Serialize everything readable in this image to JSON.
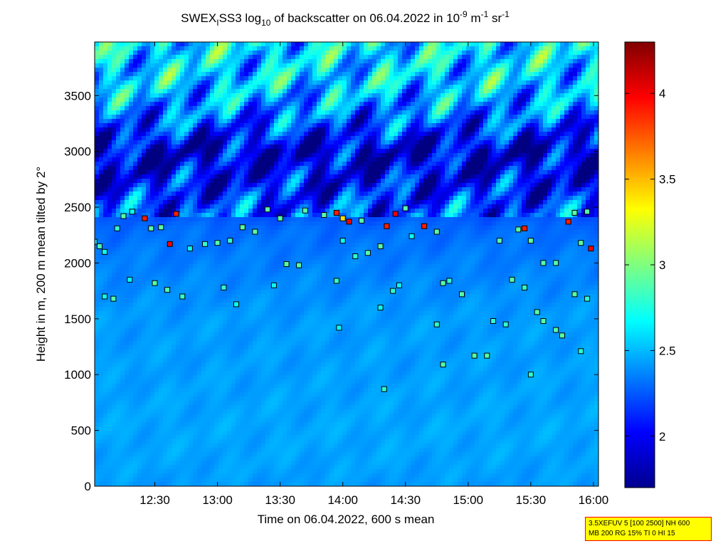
{
  "chart_data": {
    "type": "heatmap",
    "title": "SWEX_ISS3 log10 of backscatter on 06.04.2022 in 10^-9 m^-1 sr^-1",
    "title_parts": {
      "a": "SWEX",
      "a_sub": "I",
      "b": "SS3 log",
      "b_sub": "10",
      "c": " of backscatter on 06.04.2022 in 10",
      "c_sup": "-9",
      "d": " m",
      "d_sup": "-1",
      "e": " sr",
      "e_sup": "-1"
    },
    "xlabel": "Time on 06.04.2022, 600 s mean",
    "ylabel": "Height in m, 200 m mean tilted by 2°",
    "x_tick_labels": [
      "12:30",
      "13:00",
      "13:30",
      "14:00",
      "14:30",
      "15:00",
      "15:30",
      "16:00"
    ],
    "x_ticks_hours": [
      12.5,
      13.0,
      13.5,
      14.0,
      14.5,
      15.0,
      15.5,
      16.0
    ],
    "xlim_hours": [
      12.02,
      16.04
    ],
    "y_tick_labels": [
      "0",
      "500",
      "1000",
      "1500",
      "2000",
      "2500",
      "3000",
      "3500"
    ],
    "y_ticks": [
      0,
      500,
      1000,
      1500,
      2000,
      2500,
      3000,
      3500
    ],
    "ylim": [
      0,
      3980
    ],
    "colorbar": {
      "tick_labels": [
        "2",
        "2.5",
        "3",
        "3.5",
        "4"
      ],
      "ticks": [
        2,
        2.5,
        3,
        3.5,
        4
      ],
      "range": [
        1.7,
        4.3
      ],
      "colormap": "jet"
    },
    "field_profile": [
      {
        "height": 0,
        "value": 2.42
      },
      {
        "height": 200,
        "value": 2.44
      },
      {
        "height": 500,
        "value": 2.45
      },
      {
        "height": 1000,
        "value": 2.43
      },
      {
        "height": 1500,
        "value": 2.42
      },
      {
        "height": 2000,
        "value": 2.35
      },
      {
        "height": 2300,
        "value": 2.3
      },
      {
        "height": 2500,
        "value": 2.2
      },
      {
        "height": 2700,
        "value": 2.05
      },
      {
        "height": 3000,
        "value": 1.9
      },
      {
        "height": 3300,
        "value": 2.3
      },
      {
        "height": 3600,
        "value": 2.55
      },
      {
        "height": 3980,
        "value": 2.6
      }
    ],
    "layer_points": [
      {
        "t": 12.02,
        "h": 2190,
        "v": 2.6
      },
      {
        "t": 12.06,
        "h": 2150,
        "v": 2.9
      },
      {
        "t": 12.1,
        "h": 2100,
        "v": 2.7
      },
      {
        "t": 12.2,
        "h": 2310,
        "v": 2.8
      },
      {
        "t": 12.25,
        "h": 2420,
        "v": 2.9
      },
      {
        "t": 12.32,
        "h": 2460,
        "v": 2.7
      },
      {
        "t": 12.1,
        "h": 1700,
        "v": 2.7
      },
      {
        "t": 12.17,
        "h": 1680,
        "v": 2.9
      },
      {
        "t": 12.3,
        "h": 1850,
        "v": 2.7
      },
      {
        "t": 12.42,
        "h": 2400,
        "v": 3.9
      },
      {
        "t": 12.47,
        "h": 2310,
        "v": 2.9
      },
      {
        "t": 12.55,
        "h": 2320,
        "v": 2.9
      },
      {
        "t": 12.62,
        "h": 2170,
        "v": 4.0
      },
      {
        "t": 12.67,
        "h": 2440,
        "v": 3.9
      },
      {
        "t": 12.5,
        "h": 1820,
        "v": 2.9
      },
      {
        "t": 12.6,
        "h": 1760,
        "v": 2.9
      },
      {
        "t": 12.72,
        "h": 1700,
        "v": 2.8
      },
      {
        "t": 12.78,
        "h": 2130,
        "v": 2.7
      },
      {
        "t": 12.9,
        "h": 2170,
        "v": 2.8
      },
      {
        "t": 13.0,
        "h": 2180,
        "v": 2.9
      },
      {
        "t": 13.1,
        "h": 2200,
        "v": 2.8
      },
      {
        "t": 13.2,
        "h": 2320,
        "v": 2.9
      },
      {
        "t": 13.3,
        "h": 2280,
        "v": 2.9
      },
      {
        "t": 13.05,
        "h": 1780,
        "v": 2.8
      },
      {
        "t": 13.15,
        "h": 1630,
        "v": 2.7
      },
      {
        "t": 13.4,
        "h": 2480,
        "v": 2.9
      },
      {
        "t": 13.5,
        "h": 2400,
        "v": 2.9
      },
      {
        "t": 13.55,
        "h": 1990,
        "v": 2.9
      },
      {
        "t": 13.65,
        "h": 1980,
        "v": 2.9
      },
      {
        "t": 13.45,
        "h": 1800,
        "v": 2.7
      },
      {
        "t": 13.7,
        "h": 2470,
        "v": 2.9
      },
      {
        "t": 13.85,
        "h": 2430,
        "v": 2.9
      },
      {
        "t": 13.95,
        "h": 2450,
        "v": 3.9
      },
      {
        "t": 14.0,
        "h": 2400,
        "v": 3.4
      },
      {
        "t": 14.05,
        "h": 2370,
        "v": 4.0
      },
      {
        "t": 14.15,
        "h": 2380,
        "v": 2.9
      },
      {
        "t": 13.95,
        "h": 1840,
        "v": 2.8
      },
      {
        "t": 13.97,
        "h": 1420,
        "v": 2.7
      },
      {
        "t": 14.0,
        "h": 2200,
        "v": 2.7
      },
      {
        "t": 14.1,
        "h": 2060,
        "v": 2.8
      },
      {
        "t": 14.2,
        "h": 2090,
        "v": 2.9
      },
      {
        "t": 14.3,
        "h": 2150,
        "v": 2.9
      },
      {
        "t": 14.35,
        "h": 2330,
        "v": 3.9
      },
      {
        "t": 14.42,
        "h": 2440,
        "v": 4.0
      },
      {
        "t": 14.5,
        "h": 2490,
        "v": 2.9
      },
      {
        "t": 14.3,
        "h": 1600,
        "v": 2.7
      },
      {
        "t": 14.4,
        "h": 1750,
        "v": 2.8
      },
      {
        "t": 14.45,
        "h": 1800,
        "v": 2.7
      },
      {
        "t": 14.33,
        "h": 870,
        "v": 2.8
      },
      {
        "t": 14.55,
        "h": 2240,
        "v": 2.7
      },
      {
        "t": 14.65,
        "h": 2330,
        "v": 3.9
      },
      {
        "t": 14.75,
        "h": 2280,
        "v": 2.9
      },
      {
        "t": 14.8,
        "h": 1820,
        "v": 2.9
      },
      {
        "t": 14.85,
        "h": 1840,
        "v": 2.8
      },
      {
        "t": 14.75,
        "h": 1450,
        "v": 2.8
      },
      {
        "t": 14.8,
        "h": 1090,
        "v": 2.9
      },
      {
        "t": 14.95,
        "h": 1720,
        "v": 2.9
      },
      {
        "t": 15.05,
        "h": 1170,
        "v": 2.9
      },
      {
        "t": 15.15,
        "h": 1170,
        "v": 2.9
      },
      {
        "t": 15.2,
        "h": 1480,
        "v": 2.8
      },
      {
        "t": 15.3,
        "h": 1450,
        "v": 2.8
      },
      {
        "t": 15.25,
        "h": 2200,
        "v": 2.9
      },
      {
        "t": 15.4,
        "h": 2300,
        "v": 2.9
      },
      {
        "t": 15.45,
        "h": 2310,
        "v": 3.9
      },
      {
        "t": 15.5,
        "h": 2200,
        "v": 2.9
      },
      {
        "t": 15.35,
        "h": 1850,
        "v": 2.9
      },
      {
        "t": 15.45,
        "h": 1780,
        "v": 2.8
      },
      {
        "t": 15.55,
        "h": 1560,
        "v": 2.9
      },
      {
        "t": 15.6,
        "h": 1480,
        "v": 2.9
      },
      {
        "t": 15.7,
        "h": 1400,
        "v": 2.9
      },
      {
        "t": 15.75,
        "h": 1350,
        "v": 2.9
      },
      {
        "t": 15.6,
        "h": 2000,
        "v": 2.9
      },
      {
        "t": 15.7,
        "h": 2000,
        "v": 2.9
      },
      {
        "t": 15.5,
        "h": 1000,
        "v": 2.8
      },
      {
        "t": 15.8,
        "h": 2370,
        "v": 3.9
      },
      {
        "t": 15.85,
        "h": 2450,
        "v": 2.9
      },
      {
        "t": 15.95,
        "h": 2460,
        "v": 2.9
      },
      {
        "t": 15.85,
        "h": 1720,
        "v": 2.9
      },
      {
        "t": 15.95,
        "h": 1680,
        "v": 2.8
      },
      {
        "t": 15.9,
        "h": 2180,
        "v": 2.9
      },
      {
        "t": 15.98,
        "h": 2130,
        "v": 4.0
      },
      {
        "t": 15.9,
        "h": 1210,
        "v": 2.8
      }
    ]
  },
  "info_box": {
    "line1": "3.5XEFUV 5 [100 2500] NH 600",
    "line2": "MB 200 RG 15% TI 0 HI 15"
  }
}
